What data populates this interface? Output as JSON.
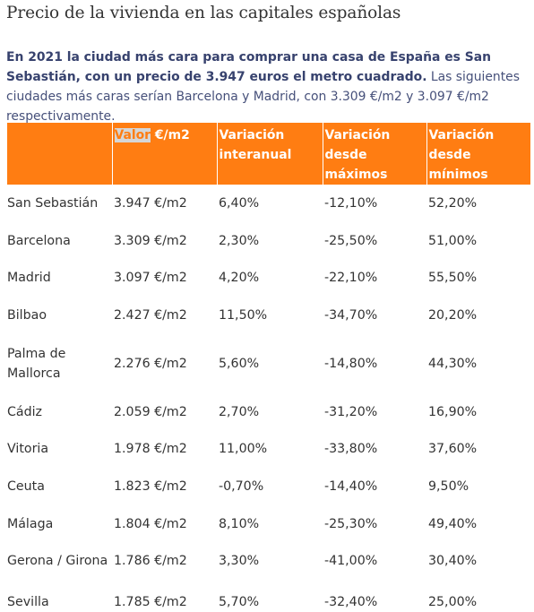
{
  "page": {
    "title": "Precio de la vivienda en las capitales españolas",
    "intro_bold": "En 2021 la ciudad más cara para comprar una casa de España es San Sebastián, con un precio de 3.947 euros el metro cuadrado.",
    "intro_rest": " Las siguientes ciudades más caras serían Barcelona y Madrid, con 3.309 €/m2 y 3.097 €/m2 respectivamente."
  },
  "table": {
    "headers": {
      "city": "",
      "value_selected": "Valor",
      "value_rest": " €/m2",
      "annual": "Variación interanual",
      "from_max": "Variación desde máximos",
      "from_min": "Variación desde mínimos"
    },
    "rows": [
      {
        "city": "San Sebastián",
        "value": "3.947 €/m2",
        "annual": "6,40%",
        "from_max": "-12,10%",
        "from_min": "52,20%"
      },
      {
        "city": "Barcelona",
        "value": "3.309 €/m2",
        "annual": "2,30%",
        "from_max": "-25,50%",
        "from_min": "51,00%"
      },
      {
        "city": "Madrid",
        "value": "3.097 €/m2",
        "annual": "4,20%",
        "from_max": "-22,10%",
        "from_min": "55,50%"
      },
      {
        "city": "Bilbao",
        "value": "2.427 €/m2",
        "annual": "11,50%",
        "from_max": "-34,70%",
        "from_min": "20,20%"
      },
      {
        "city": "Palma de Mallorca",
        "value": "2.276 €/m2",
        "annual": "5,60%",
        "from_max": "-14,80%",
        "from_min": "44,30%"
      },
      {
        "city": "Cádiz",
        "value": "2.059 €/m2",
        "annual": "2,70%",
        "from_max": "-31,20%",
        "from_min": "16,90%"
      },
      {
        "city": "Vitoria",
        "value": "1.978 €/m2",
        "annual": "11,00%",
        "from_max": "-33,80%",
        "from_min": "37,60%"
      },
      {
        "city": "Ceuta",
        "value": "1.823 €/m2",
        "annual": "-0,70%",
        "from_max": "-14,40%",
        "from_min": "9,50%"
      },
      {
        "city": "Málaga",
        "value": "1.804 €/m2",
        "annual": "8,10%",
        "from_max": "-25,30%",
        "from_min": "49,40%"
      },
      {
        "city": "Gerona / Girona",
        "value": "1.786 €/m2",
        "annual": "3,30%",
        "from_max": "-41,00%",
        "from_min": "30,40%"
      },
      {
        "city": "Sevilla",
        "value": "1.785 €/m2",
        "annual": "5,70%",
        "from_max": "-32,40%",
        "from_min": "25,00%"
      }
    ]
  },
  "colors": {
    "header_bg": "#ff7d12",
    "intro_text": "#46507a",
    "body_text": "#333333",
    "selection": "#d6d6d6"
  }
}
